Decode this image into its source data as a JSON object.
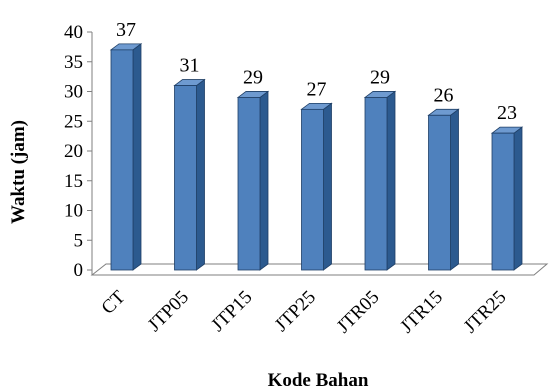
{
  "chart_data": {
    "type": "bar",
    "title": "",
    "xlabel": "Kode Bahan",
    "ylabel": "Waktu (jam)",
    "categories": [
      "CT",
      "JTP05",
      "JTP15",
      "JTP25",
      "JTR05",
      "JTR15",
      "JTR25"
    ],
    "values": [
      37,
      31,
      29,
      27,
      29,
      26,
      23
    ],
    "ylim": [
      0,
      40
    ],
    "yticks": [
      "0",
      "5",
      "10",
      "15",
      "20",
      "25",
      "30",
      "35",
      "40"
    ],
    "data_labels": [
      "37",
      "31",
      "29",
      "27",
      "29",
      "26",
      "23"
    ],
    "grid": false,
    "legend": "none",
    "style": "3d-column",
    "colors": {
      "bar_front": "#4F81BD",
      "bar_side": "#2C5A8F",
      "bar_top": "#6E9AD0",
      "bar_edge": "#1F3F66",
      "floor": "#ffffff",
      "axis": "#7f7f7f"
    }
  }
}
